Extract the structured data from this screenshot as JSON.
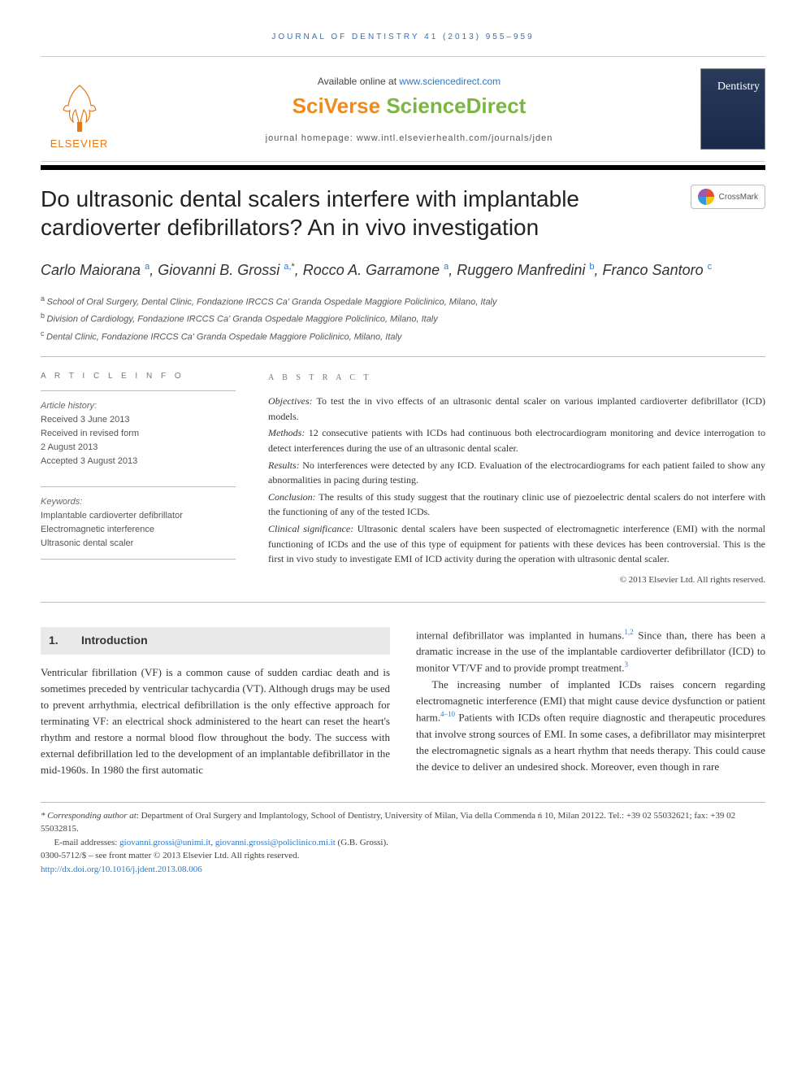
{
  "running_header": "JOURNAL OF DENTISTRY 41 (2013) 955–959",
  "masthead": {
    "available_prefix": "Available online at ",
    "available_url": "www.sciencedirect.com",
    "sciverse_a": "SciVerse ",
    "sciverse_b": "ScienceDirect",
    "homepage_label": "journal homepage: www.intl.elsevierhealth.com/journals/jden",
    "elsevier_word": "ELSEVIER",
    "journal_cover_title": "Dentistry",
    "crossmark_label": "CrossMark"
  },
  "title": "Do ultrasonic dental scalers interfere with implantable cardioverter defibrillators? An in vivo investigation",
  "authors_html": [
    {
      "name": "Carlo Maiorana",
      "aff": "a",
      "star": false,
      "trail": ", "
    },
    {
      "name": "Giovanni B. Grossi",
      "aff": "a",
      "star": true,
      "trail": ", "
    },
    {
      "name": "Rocco A. Garramone",
      "aff": "a",
      "star": false,
      "trail": ", "
    },
    {
      "name": "Ruggero Manfredini",
      "aff": "b",
      "star": false,
      "trail": ", "
    },
    {
      "name": "Franco Santoro",
      "aff": "c",
      "star": false,
      "trail": ""
    }
  ],
  "affiliations": [
    {
      "sup": "a",
      "text": "School of Oral Surgery, Dental Clinic, Fondazione IRCCS Ca' Granda Ospedale Maggiore Policlinico, Milano, Italy"
    },
    {
      "sup": "b",
      "text": "Division of Cardiology, Fondazione IRCCS Ca' Granda Ospedale Maggiore Policlinico, Milano, Italy"
    },
    {
      "sup": "c",
      "text": "Dental Clinic, Fondazione IRCCS Ca' Granda Ospedale Maggiore Policlinico, Milano, Italy"
    }
  ],
  "info": {
    "heading_info": "A R T I C L E   I N F O",
    "heading_abs": "A B S T R A C T",
    "history_label": "Article history:",
    "history": [
      "Received 3 June 2013",
      "Received in revised form",
      "2 August 2013",
      "Accepted 3 August 2013"
    ],
    "keywords_label": "Keywords:",
    "keywords": [
      "Implantable cardioverter defibrillator",
      "Electromagnetic interference",
      "Ultrasonic dental scaler"
    ]
  },
  "abstract": {
    "objectives_label": "Objectives:",
    "objectives": " To test the in vivo effects of an ultrasonic dental scaler on various implanted cardioverter defibrillator (ICD) models.",
    "methods_label": "Methods:",
    "methods": " 12 consecutive patients with ICDs had continuous both electrocardiogram monitoring and device interrogation to detect interferences during the use of an ultrasonic dental scaler.",
    "results_label": "Results:",
    "results": " No interferences were detected by any ICD. Evaluation of the electrocardiograms for each patient failed to show any abnormalities in pacing during testing.",
    "conclusion_label": "Conclusion:",
    "conclusion": " The results of this study suggest that the routinary clinic use of piezoelectric dental scalers do not interfere with the functioning of any of the tested ICDs.",
    "clinical_label": "Clinical significance:",
    "clinical": " Ultrasonic dental scalers have been suspected of electromagnetic interference (EMI) with the normal functioning of ICDs and the use of this type of equipment for patients with these devices has been controversial. This is the first in vivo study to investigate EMI of ICD activity during the operation with ultrasonic dental scaler.",
    "copyright": "© 2013 Elsevier Ltd. All rights reserved."
  },
  "section1": {
    "num": "1.",
    "title": "Introduction",
    "col1": "Ventricular fibrillation (VF) is a common cause of sudden cardiac death and is sometimes preceded by ventricular tachycardia (VT). Although drugs may be used to prevent arrhythmia, electrical defibrillation is the only effective approach for terminating VF: an electrical shock administered to the heart can reset the heart's rhythm and restore a normal blood flow throughout the body. The success with external defibrillation led to the development of an implantable defibrillator in the mid-1960s. In 1980 the first automatic",
    "col2a_pre": "internal defibrillator was implanted in humans.",
    "col2a_ref": "1,2",
    "col2a_post": " Since than, there has been a dramatic increase in the use of the implantable cardioverter defibrillator (ICD) to monitor VT/VF and to provide prompt treatment.",
    "col2a_ref2": "3",
    "col2b_pre": "The increasing number of implanted ICDs raises concern regarding electromagnetic interference (EMI) that might cause device dysfunction or patient harm.",
    "col2b_ref": "4–10",
    "col2b_post": " Patients with ICDs often require diagnostic and therapeutic procedures that involve strong sources of EMI. In some cases, a defibrillator may misinterpret the electromagnetic signals as a heart rhythm that needs therapy. This could cause the device to deliver an undesired shock. Moreover, even though in rare"
  },
  "footnotes": {
    "corr_label": "* Corresponding author at",
    "corr_text": ": Department of Oral Surgery and Implantology, School of Dentistry, University of Milan, Via della Commenda ń 10, Milan 20122. Tel.: +39 02 55032621; fax: +39 02 55032815.",
    "email_label": "E-mail addresses: ",
    "email1": "giovanni.grossi@unimi.it",
    "email_sep": ", ",
    "email2": "giovanni.grossi@policlinico.mi.it",
    "email_tail": " (G.B. Grossi).",
    "issn": "0300-5712/$ – see front matter © 2013 Elsevier Ltd. All rights reserved.",
    "doi": "http://dx.doi.org/10.1016/j.jdent.2013.08.006"
  },
  "colors": {
    "link": "#2b7bc9",
    "elsevier_orange": "#e67817",
    "sciverse_orange": "#f18a1c",
    "sciverse_green": "#7bb642",
    "section_bg": "#e9e9e9",
    "rule": "#bbbbbb"
  }
}
